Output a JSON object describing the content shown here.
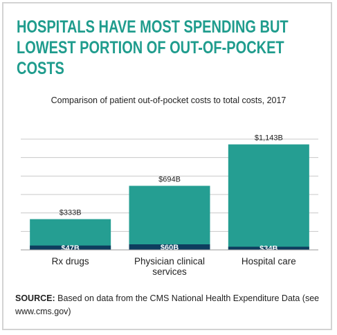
{
  "chart_data": {
    "type": "bar",
    "title": "HOSPITALS HAVE MOST SPENDING BUT LOWEST PORTION OF OUT-OF-POCKET COSTS",
    "subtitle": "Comparison of patient out-of-pocket costs to total costs, 2017",
    "categories": [
      "Rx drugs",
      "Physician clinical services",
      "Hospital care"
    ],
    "series": [
      {
        "color": "#259e92",
        "values": [
          333,
          694,
          1143
        ],
        "value_labels": [
          "$333B",
          "$694B",
          "$1,143B"
        ]
      },
      {
        "color": "#0e3d5e",
        "values": [
          47,
          60,
          34
        ],
        "value_labels": [
          "$47B",
          "$60B",
          "$34B"
        ]
      }
    ],
    "ylim": [
      0,
      1200
    ],
    "yticks": [
      0,
      200,
      400,
      600,
      800,
      1000,
      1200
    ],
    "grid": true,
    "source_label": "SOURCE:",
    "source_text": "Based on data from the CMS National Health Expenditure Data (see www.cms.gov)"
  }
}
